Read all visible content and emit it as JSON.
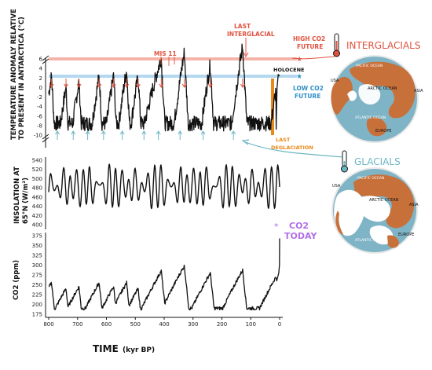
{
  "panels": {
    "temperature": {
      "ylabel_line1": "TEMPERATURE ANOMALY RELATIVE",
      "ylabel_line2": "TO PRESENT IN ANTARCTICA (°C)",
      "ticks": [
        "6",
        "4",
        "2",
        "0",
        "-2",
        "-4",
        "-6",
        "-8",
        "-10"
      ]
    },
    "insolation": {
      "ylabel_line1": "INSOLATION AT",
      "ylabel_line2": "65°N (W/m²)",
      "ticks": [
        "540",
        "520",
        "500",
        "480",
        "460",
        "440",
        "420",
        "400"
      ]
    },
    "co2": {
      "ylabel": "CO2 (ppm)",
      "ticks": [
        "375",
        "350",
        "325",
        "300",
        "275",
        "250",
        "225",
        "200",
        "175"
      ]
    },
    "x_axis": {
      "title": "TIME",
      "unit": "(kyr BP)",
      "ticks": [
        "800",
        "700",
        "600",
        "500",
        "400",
        "300",
        "200",
        "100",
        "0"
      ]
    }
  },
  "annotations": {
    "mis11": "MIS 11",
    "last_interglacial_1": "LAST",
    "last_interglacial_2": "INTERGLACIAL",
    "high_co2_1": "HIGH CO2",
    "high_co2_2": "FUTURE",
    "low_co2_1": "LOW CO2",
    "low_co2_2": "FUTURE",
    "holocene": "HOLOCENE",
    "last_deglaciation_1": "LAST",
    "last_deglaciation_2": "DEGLACIATION",
    "co2_today_1": "CO2",
    "co2_today_2": "TODAY"
  },
  "maps": {
    "interglacials": {
      "title": "INTERGLACIALS",
      "labels": {
        "pacific": "PACIFIC OCEAN",
        "arctic": "ARCTIC OCEAN",
        "atlantic": "ATLANTIC OCEAN",
        "usa": "USA",
        "asia": "ASIA",
        "europe": "EUROPE"
      }
    },
    "glacials": {
      "title": "GLACIALS",
      "labels": {
        "pacific": "PACIFIC OCEAN",
        "arctic": "ARCTIC OCEAN",
        "atlantic": "ATLANTIC OCEAN",
        "usa": "USA",
        "asia": "ASIA",
        "europe": "EUROPE"
      }
    }
  },
  "colors": {
    "red": "#e0523f",
    "blue": "#2f8fc6",
    "orange": "#e88a1a",
    "teal": "#6bb6c4",
    "purple": "#b070e6",
    "land": "#c8703a",
    "ocean": "#7fb4c6"
  }
}
